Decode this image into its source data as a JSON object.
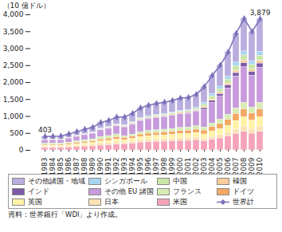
{
  "chart_data": {
    "type": "bar",
    "stacked": true,
    "data_labels": true,
    "grid": false,
    "legend": "bottom",
    "y_label": "（10 億ドル）",
    "caption": "資料：世界銀行「WDI」より作成。",
    "categories": [
      "1983",
      "1984",
      "1985",
      "1986",
      "1987",
      "1988",
      "1989",
      "1990",
      "1991",
      "1992",
      "1993",
      "1994",
      "1995",
      "1996",
      "1997",
      "1998",
      "1999",
      "2000",
      "2001",
      "2002",
      "2003",
      "2004",
      "2005",
      "2006",
      "2007",
      "2008",
      "2009",
      "2010"
    ],
    "ylim": [
      0,
      4000
    ],
    "yticks": [
      0,
      500,
      {
        "value": 1000,
        "label": "1,000"
      },
      {
        "value": 1500,
        "label": "1,500"
      },
      {
        "value": 2000,
        "label": "2,000"
      },
      {
        "value": 2500,
        "label": "2,500"
      },
      {
        "value": 3000,
        "label": "3,000"
      },
      {
        "value": 3500,
        "label": "3,500"
      },
      {
        "value": 4000,
        "label": "4,000"
      }
    ],
    "series": [
      {
        "name": "その他諸国・地域",
        "color": "#b9aede",
        "values": [
          89,
          90,
          94,
          104,
          118,
          138,
          148,
          182,
          192,
          214,
          234,
          262,
          299,
          318,
          330,
          342,
          353,
          371,
          373,
          395,
          470,
          553,
          628,
          725,
          860,
          971,
          875,
          970
        ]
      },
      {
        "name": "シンガポール",
        "color": "#a8d4f2",
        "values": [
          8,
          8,
          8,
          10,
          11,
          12,
          14,
          16,
          18,
          20,
          20,
          22,
          25,
          27,
          28,
          28,
          29,
          31,
          31,
          33,
          56,
          66,
          75,
          87,
          104,
          117,
          105,
          116
        ]
      },
      {
        "name": "中国",
        "color": "#c9e6a8",
        "values": [
          4,
          4,
          4,
          5,
          6,
          6,
          7,
          8,
          9,
          10,
          20,
          22,
          25,
          27,
          28,
          28,
          29,
          31,
          31,
          33,
          75,
          88,
          100,
          116,
          138,
          156,
          140,
          155
        ]
      },
      {
        "name": "韓国",
        "color": "#f9cc9c",
        "values": [
          8,
          8,
          8,
          10,
          11,
          12,
          14,
          16,
          18,
          20,
          20,
          22,
          25,
          27,
          28,
          28,
          29,
          31,
          31,
          33,
          38,
          44,
          50,
          58,
          69,
          78,
          70,
          78
        ]
      },
      {
        "name": "インド",
        "color": "#7d5aa8",
        "values": [
          4,
          4,
          4,
          5,
          6,
          6,
          7,
          8,
          9,
          10,
          10,
          11,
          13,
          13,
          14,
          14,
          15,
          15,
          16,
          17,
          56,
          66,
          75,
          87,
          104,
          117,
          105,
          116
        ]
      },
      {
        "name": "その他 EU 諸国",
        "color": "#c79bdc",
        "values": [
          97,
          98,
          101,
          115,
          132,
          149,
          163,
          197,
          211,
          235,
          255,
          283,
          325,
          346,
          359,
          369,
          382,
          400,
          406,
          429,
          508,
          597,
          678,
          783,
          932,
          1050,
          945,
          1047
        ]
      },
      {
        "name": "フランス",
        "color": "#d6ecb4",
        "values": [
          36,
          37,
          38,
          43,
          50,
          56,
          61,
          74,
          79,
          88,
          59,
          65,
          75,
          80,
          83,
          85,
          88,
          92,
          94,
          99,
          94,
          111,
          126,
          145,
          173,
          195,
          175,
          194
        ]
      },
      {
        "name": "ドイツ",
        "color": "#f4a863",
        "values": [
          28,
          29,
          29,
          34,
          39,
          43,
          48,
          57,
          62,
          69,
          59,
          65,
          75,
          80,
          83,
          85,
          88,
          92,
          94,
          99,
          113,
          133,
          151,
          174,
          207,
          233,
          210,
          233
        ]
      },
      {
        "name": "英国",
        "color": "#fff3a6",
        "values": [
          32,
          33,
          34,
          38,
          44,
          50,
          54,
          66,
          70,
          78,
          78,
          87,
          100,
          106,
          110,
          114,
          118,
          123,
          125,
          132,
          132,
          155,
          176,
          203,
          242,
          272,
          245,
          272
        ]
      },
      {
        "name": "日本",
        "color": "#fbe2b4",
        "values": [
          28,
          29,
          29,
          34,
          39,
          43,
          48,
          57,
          62,
          69,
          49,
          55,
          63,
          67,
          69,
          71,
          74,
          77,
          78,
          83,
          75,
          88,
          100,
          116,
          138,
          156,
          140,
          155
        ]
      },
      {
        "name": "米国",
        "color": "#f6a3b9",
        "values": [
          69,
          70,
          71,
          82,
          94,
          105,
          116,
          139,
          150,
          167,
          176,
          196,
          225,
          239,
          248,
          256,
          265,
          277,
          281,
          297,
          263,
          309,
          351,
          406,
          483,
          545,
          490,
          543
        ]
      },
      {
        "name": "世界計",
        "type": "line",
        "marker": "diamond",
        "color": "#7b70b8",
        "values": [
          403,
          410,
          420,
          480,
          550,
          620,
          680,
          820,
          880,
          980,
          980,
          1090,
          1250,
          1330,
          1380,
          1420,
          1470,
          1540,
          1560,
          1650,
          1880,
          2210,
          2510,
          2900,
          3450,
          3890,
          3500,
          3879
        ],
        "value_labels": [
          "403",
          null,
          null,
          null,
          null,
          null,
          null,
          null,
          null,
          null,
          null,
          null,
          null,
          null,
          null,
          null,
          null,
          null,
          null,
          null,
          null,
          null,
          null,
          null,
          null,
          null,
          null,
          "3,879"
        ]
      }
    ]
  }
}
